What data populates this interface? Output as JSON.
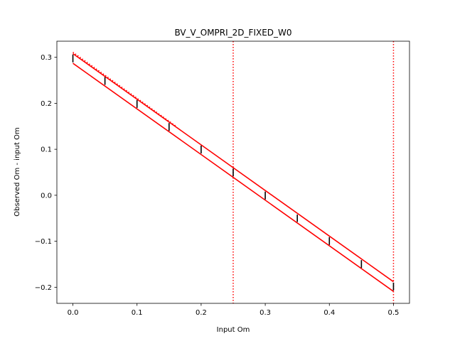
{
  "chart_data": {
    "type": "line",
    "title": "BV_V_OMPRI_2D_FIXED_W0",
    "xlabel": "Input Om",
    "ylabel": "Observed Om - input Om",
    "xlim": [
      -0.025,
      0.525
    ],
    "ylim": [
      -0.235,
      0.335
    ],
    "xticks": [
      "0.0",
      "0.1",
      "0.2",
      "0.3",
      "0.4",
      "0.5"
    ],
    "xtick_values": [
      0.0,
      0.1,
      0.2,
      0.3,
      0.4,
      0.5
    ],
    "yticks": [
      "−0.2",
      "−0.1",
      "0.0",
      "0.1",
      "0.2",
      "0.3"
    ],
    "ytick_values": [
      -0.2,
      -0.1,
      0.0,
      0.1,
      0.2,
      0.3
    ],
    "grid": false,
    "series": [
      {
        "style": "solid",
        "color": "#ff0000",
        "x": [
          0.0,
          0.5
        ],
        "y": [
          0.308,
          -0.188
        ]
      },
      {
        "style": "solid",
        "color": "#ff0000",
        "x": [
          0.0,
          0.5
        ],
        "y": [
          0.287,
          -0.209
        ]
      },
      {
        "style": "dotted",
        "color": "#ff0000",
        "x": [
          0.0,
          0.16
        ],
        "y": [
          0.311,
          0.151
        ]
      }
    ],
    "error_bars": {
      "color": "#000000",
      "x": [
        0.0,
        0.05,
        0.1,
        0.15,
        0.2,
        0.25,
        0.3,
        0.35,
        0.4,
        0.45,
        0.5
      ],
      "low": [
        0.289,
        0.24,
        0.19,
        0.14,
        0.091,
        0.041,
        -0.009,
        -0.058,
        -0.108,
        -0.158,
        -0.207
      ],
      "high": [
        0.306,
        0.257,
        0.207,
        0.157,
        0.108,
        0.058,
        0.008,
        -0.042,
        -0.091,
        -0.141,
        -0.19
      ]
    },
    "vlines": [
      {
        "x": 0.25,
        "style": "dotted",
        "color": "#ff0000"
      },
      {
        "x": 0.5,
        "style": "dotted",
        "color": "#ff0000"
      }
    ]
  }
}
